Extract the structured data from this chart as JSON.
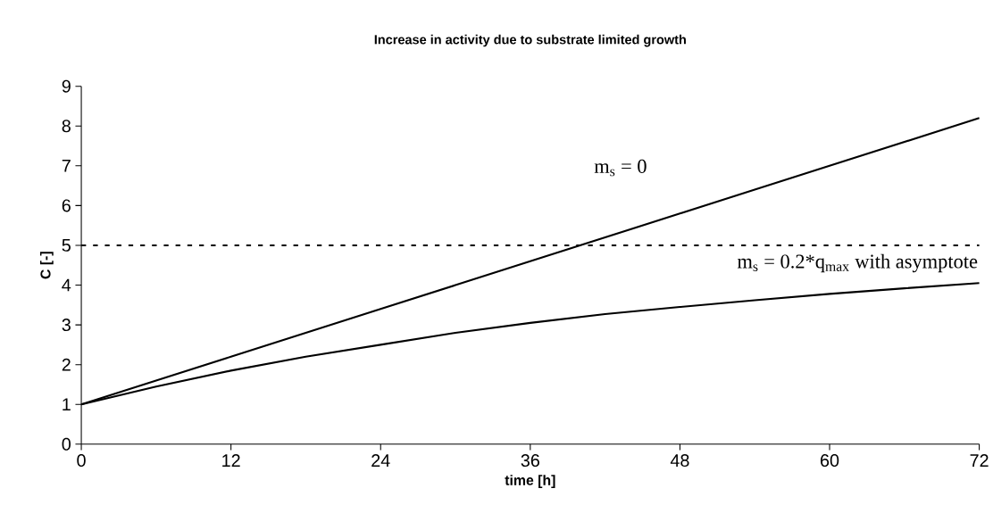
{
  "chart_data": {
    "type": "line",
    "title": "Increase in activity due to substrate limited growth",
    "xlabel": "time [h]",
    "ylabel": "C [-]",
    "x": [
      0,
      6,
      12,
      18,
      24,
      30,
      36,
      42,
      48,
      54,
      60,
      66,
      72
    ],
    "series": [
      {
        "name": "m$_{s}$ = 0",
        "color": "#000000",
        "values": [
          1,
          1.6,
          2.2,
          2.8,
          3.4,
          4.0,
          4.6,
          5.2,
          5.8,
          6.4,
          7.0,
          7.6,
          8.2
        ]
      },
      {
        "name": "m$_{s}$ = 0.2*q$_{max}$ with asymptote",
        "color": "#000000",
        "values": [
          1,
          1.45,
          1.85,
          2.2,
          2.5,
          2.8,
          3.05,
          3.27,
          3.45,
          3.62,
          3.78,
          3.92,
          4.05
        ]
      }
    ],
    "xlim": [
      0,
      72
    ],
    "ylim": [
      0,
      9
    ],
    "xticks": [
      0,
      12,
      24,
      36,
      48,
      60,
      72
    ],
    "yticks": [
      0,
      1,
      2,
      3,
      4,
      5,
      6,
      7,
      8,
      9
    ],
    "ref_lines": [
      {
        "axis": "y",
        "value": 5,
        "line_style": "dashed",
        "color": "#000000"
      }
    ],
    "grid": false,
    "marker": "none",
    "line_style": "solid"
  }
}
